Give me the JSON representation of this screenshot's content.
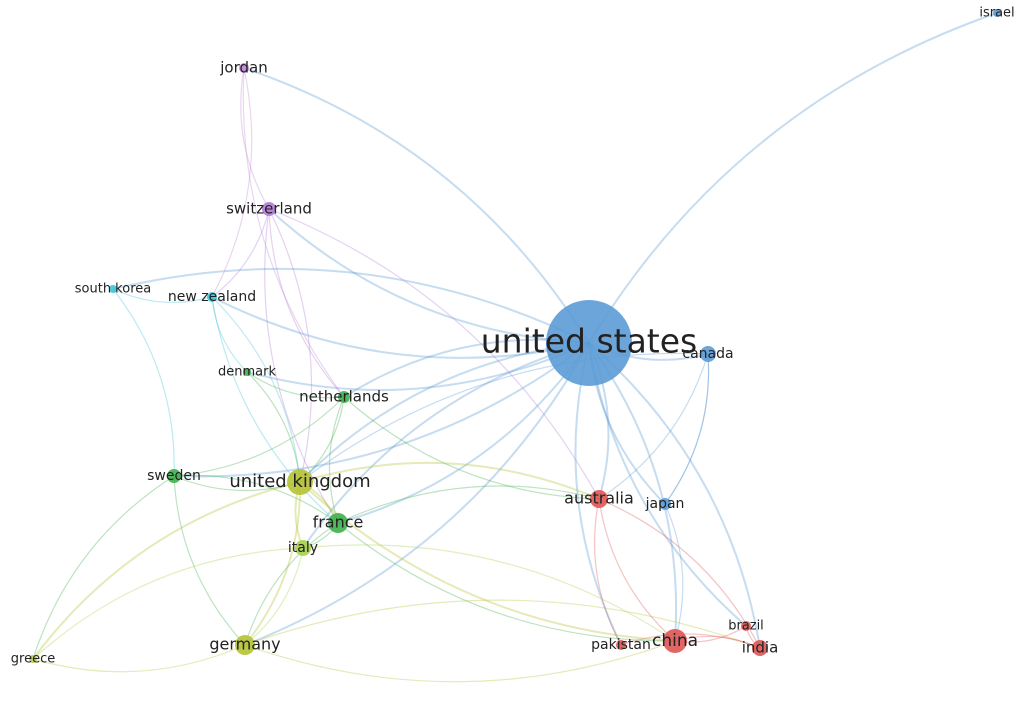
{
  "nodes": [
    {
      "label": "israel"
    },
    {
      "label": "jordan"
    },
    {
      "label": "switzerland"
    },
    {
      "label": "south korea"
    },
    {
      "label": "new zealand"
    },
    {
      "label": "united states"
    },
    {
      "label": "canada"
    },
    {
      "label": "denmark"
    },
    {
      "label": "netherlands"
    },
    {
      "label": "sweden"
    },
    {
      "label": "united kingdom"
    },
    {
      "label": "france"
    },
    {
      "label": "italy"
    },
    {
      "label": "australia"
    },
    {
      "label": "japan"
    },
    {
      "label": "germany"
    },
    {
      "label": "greece"
    },
    {
      "label": "pakistan"
    },
    {
      "label": "china"
    },
    {
      "label": "brazil"
    },
    {
      "label": "india"
    }
  ]
}
